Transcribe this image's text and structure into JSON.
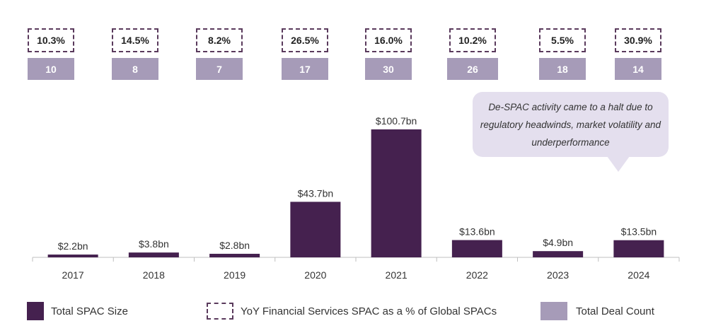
{
  "chart_data": {
    "type": "bar",
    "categories": [
      "2017",
      "2018",
      "2019",
      "2020",
      "2021",
      "2022",
      "2023",
      "2024"
    ],
    "series": [
      {
        "name": "Total SPAC Size",
        "values": [
          2.2,
          3.8,
          2.8,
          43.7,
          100.7,
          13.6,
          4.9,
          13.5
        ],
        "labels": [
          "$2.2bn",
          "$3.8bn",
          "$2.8bn",
          "$43.7bn",
          "$100.7bn",
          "$13.6bn",
          "$4.9bn",
          "$13.5bn"
        ]
      },
      {
        "name": "YoY Financial Services SPAC as a % of Global SPACs",
        "values": [
          10.3,
          14.5,
          8.2,
          26.5,
          16.0,
          10.2,
          5.5,
          30.9
        ],
        "labels": [
          "10.3%",
          "14.5%",
          "8.2%",
          "26.5%",
          "16.0%",
          "10.2%",
          "5.5%",
          "30.9%"
        ]
      },
      {
        "name": "Total Deal Count",
        "values": [
          10,
          8,
          7,
          17,
          30,
          26,
          18,
          14
        ],
        "labels": [
          "10",
          "8",
          "7",
          "17",
          "30",
          "26",
          "18",
          "14"
        ]
      }
    ],
    "ylim": [
      0,
      100.7
    ],
    "grid": false,
    "legend_position": "bottom",
    "annotation": "De-SPAC activity came to a halt due to regulatory headwinds, market volatility and underperformance"
  },
  "colors": {
    "bar": "#45214f",
    "count_box": "#a69bb8",
    "pct_border": "#5a3a5c",
    "callout": "#e4dfee"
  }
}
